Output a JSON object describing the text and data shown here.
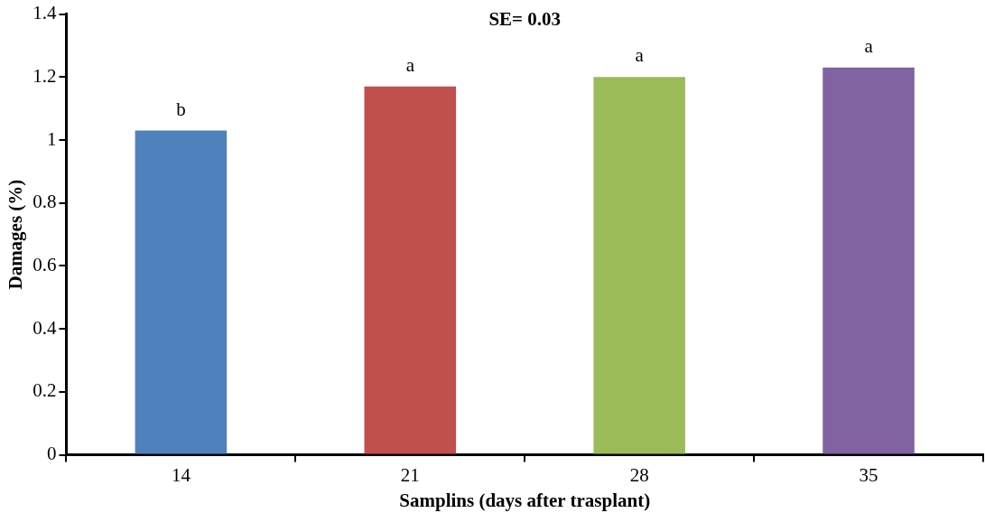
{
  "chart_data": {
    "type": "bar",
    "xlabel": "Samplins (days after trasplant)",
    "ylabel": "Damages (%)",
    "categories": [
      "14",
      "21",
      "28",
      "35"
    ],
    "values": [
      1.03,
      1.17,
      1.2,
      1.23
    ],
    "colors": [
      "#4f81bd",
      "#c0504d",
      "#9bbb59",
      "#8064a2"
    ],
    "ylim": [
      0,
      1.4
    ],
    "yticks": [
      0,
      {
        "value": 0.2,
        "label": "0.2"
      },
      {
        "value": 0.4,
        "label": "0.4"
      },
      {
        "value": 0.6,
        "label": "0.6"
      },
      {
        "value": 0.8,
        "label": "0.8"
      },
      1,
      {
        "value": 1.2,
        "label": "1.2"
      },
      {
        "value": 1.4,
        "label": "1.4"
      }
    ],
    "grid": false,
    "legend": false,
    "annotations": [
      "SE= 0.03",
      {
        "text": "b",
        "x": "14",
        "y": 1.03
      },
      {
        "text": "a",
        "x": "21",
        "y": 1.17
      },
      {
        "text": "a",
        "x": "28",
        "y": 1.2
      },
      {
        "text": "a",
        "x": "35",
        "y": 1.23
      }
    ]
  }
}
